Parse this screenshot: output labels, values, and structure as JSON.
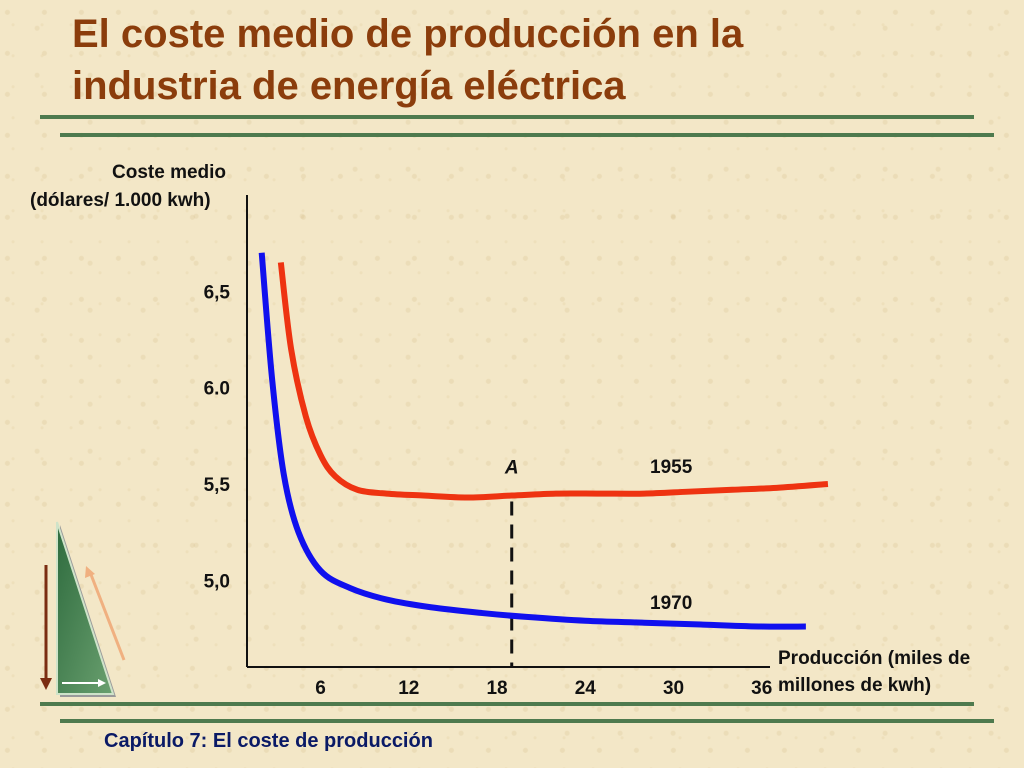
{
  "slide": {
    "title_line1": "El coste medio de producción en la",
    "title_line2": "industria de energía eléctrica",
    "footer": "Capítulo 7: El coste de producción",
    "colors": {
      "title": "#8b3d0c",
      "rule": "#4e7a4e",
      "footer": "#0a1a66"
    },
    "nav_icon": "triangle-arrows-icon"
  },
  "chart_data": {
    "type": "line",
    "ylabel_line1": "Coste medio",
    "ylabel_line2": "(dólares/ 1.000 kwh)",
    "xlabel_line1": "Producción (miles de",
    "xlabel_line2": "millones de kwh)",
    "y_ticks": [
      "6,5",
      "6.0",
      "5,5",
      "5,0"
    ],
    "y_tick_values": [
      6.5,
      6.0,
      5.5,
      5.0
    ],
    "x_ticks": [
      "6",
      "12",
      "18",
      "24",
      "30",
      "36"
    ],
    "x_tick_values": [
      6,
      12,
      18,
      24,
      30,
      36
    ],
    "xlim": [
      1,
      42
    ],
    "ylim": [
      4.55,
      7.0
    ],
    "series": [
      {
        "name": "1955",
        "color": "#ee3311",
        "x": [
          3.3,
          4.0,
          5.0,
          6.0,
          7.0,
          8.5,
          10.5,
          13,
          16,
          19,
          22,
          25,
          28,
          31,
          34,
          37,
          40.5
        ],
        "y": [
          6.65,
          6.2,
          5.85,
          5.65,
          5.54,
          5.47,
          5.45,
          5.44,
          5.43,
          5.44,
          5.45,
          5.45,
          5.45,
          5.46,
          5.47,
          5.48,
          5.5
        ]
      },
      {
        "name": "1970",
        "color": "#1010ee",
        "x": [
          2.0,
          2.7,
          3.5,
          4.5,
          6.0,
          8.0,
          10.5,
          13.5,
          17,
          20,
          24,
          28,
          32,
          36,
          39.0
        ],
        "y": [
          6.7,
          6.05,
          5.55,
          5.25,
          5.05,
          4.96,
          4.9,
          4.86,
          4.83,
          4.81,
          4.79,
          4.78,
          4.77,
          4.76,
          4.76
        ]
      }
    ],
    "annotation": {
      "label": "A",
      "x": 19,
      "y": 5.44
    }
  }
}
